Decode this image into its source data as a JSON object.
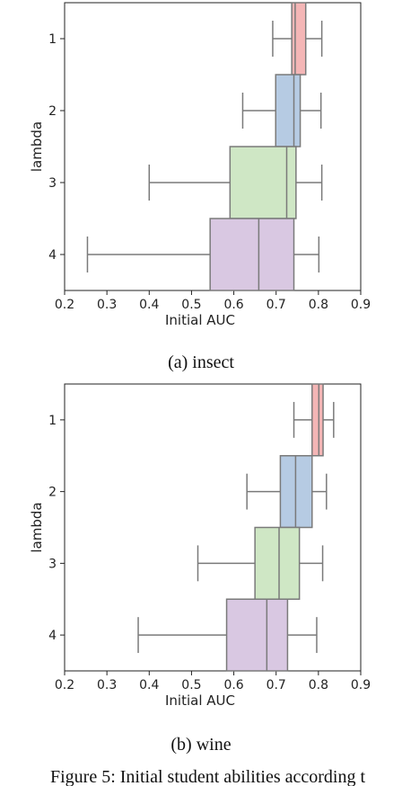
{
  "chart_data": [
    {
      "type": "boxplot",
      "orientation": "horizontal",
      "caption": "(a) insect",
      "xlabel": "Initial AUC",
      "ylabel": "lambda",
      "xlim": [
        0.2,
        0.9
      ],
      "xticks": [
        "0.2",
        "0.3",
        "0.4",
        "0.5",
        "0.6",
        "0.7",
        "0.8",
        "0.9"
      ],
      "categories": [
        "1",
        "2",
        "3",
        "4"
      ],
      "grid": false,
      "boxes": [
        {
          "label": "1",
          "whislo": 0.692,
          "q1": 0.737,
          "med": 0.745,
          "q3": 0.77,
          "whishi": 0.808,
          "color": "#f4b6b6"
        },
        {
          "label": "2",
          "whislo": 0.621,
          "q1": 0.699,
          "med": 0.742,
          "q3": 0.757,
          "whishi": 0.806,
          "color": "#b6cbe3"
        },
        {
          "label": "3",
          "whislo": 0.4,
          "q1": 0.591,
          "med": 0.725,
          "q3": 0.747,
          "whishi": 0.808,
          "color": "#cfe7c5"
        },
        {
          "label": "4",
          "whislo": 0.254,
          "q1": 0.544,
          "med": 0.659,
          "q3": 0.742,
          "whishi": 0.801,
          "color": "#d9c8e2"
        }
      ]
    },
    {
      "type": "boxplot",
      "orientation": "horizontal",
      "caption": "(b) wine",
      "xlabel": "Initial AUC",
      "ylabel": "lambda",
      "xlim": [
        0.2,
        0.9
      ],
      "xticks": [
        "0.2",
        "0.3",
        "0.4",
        "0.5",
        "0.6",
        "0.7",
        "0.8",
        "0.9"
      ],
      "categories": [
        "1",
        "2",
        "3",
        "4"
      ],
      "grid": false,
      "boxes": [
        {
          "label": "1",
          "whislo": 0.742,
          "q1": 0.785,
          "med": 0.801,
          "q3": 0.811,
          "whishi": 0.836,
          "color": "#f4b6b6"
        },
        {
          "label": "2",
          "whislo": 0.631,
          "q1": 0.71,
          "med": 0.746,
          "q3": 0.785,
          "whishi": 0.819,
          "color": "#b6cbe3"
        },
        {
          "label": "3",
          "whislo": 0.515,
          "q1": 0.65,
          "med": 0.707,
          "q3": 0.755,
          "whishi": 0.81,
          "color": "#cfe7c5"
        },
        {
          "label": "4",
          "whislo": 0.374,
          "q1": 0.583,
          "med": 0.678,
          "q3": 0.727,
          "whishi": 0.796,
          "color": "#d9c8e2"
        }
      ]
    }
  ],
  "footer_text": "Figure 5: Initial student abilities according t"
}
